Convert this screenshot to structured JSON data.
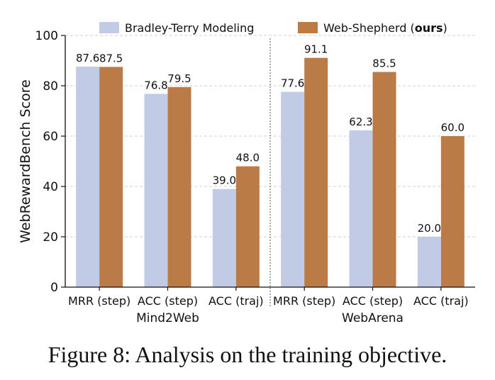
{
  "caption": "Figure 8: Analysis on the training objective.",
  "chart_data": {
    "type": "bar",
    "title": "",
    "ylabel": "WebRewardBench Score",
    "xlabel": "",
    "ylim": [
      0,
      100
    ],
    "yticks": [
      0,
      20,
      40,
      60,
      80,
      100
    ],
    "grid": "horizontal dashed",
    "legend_position": "top",
    "groups": [
      {
        "name": "Mind2Web",
        "categories": [
          "MRR (step)",
          "ACC (step)",
          "ACC (traj)"
        ]
      },
      {
        "name": "WebArena",
        "categories": [
          "MRR (step)",
          "ACC (step)",
          "ACC (traj)"
        ]
      }
    ],
    "categories": [
      "MRR (step)",
      "ACC (step)",
      "ACC (traj)",
      "MRR (step)",
      "ACC (step)",
      "ACC (traj)"
    ],
    "series": [
      {
        "name": "Bradley-Terry Modeling",
        "color": "#c2cbe5",
        "values": [
          87.6,
          76.8,
          39.0,
          77.6,
          62.3,
          20.0
        ],
        "labels": [
          "87.6",
          "76.8",
          "39.0",
          "77.6",
          "62.3",
          "20.0"
        ]
      },
      {
        "name": "Web-Shepherd",
        "name_suffix": "ours",
        "color": "#bb7b47",
        "values": [
          87.5,
          79.5,
          48.0,
          91.1,
          85.5,
          60.0
        ],
        "labels": [
          "87.5",
          "79.5",
          "48.0",
          "91.1",
          "85.5",
          "60.0"
        ]
      }
    ]
  }
}
